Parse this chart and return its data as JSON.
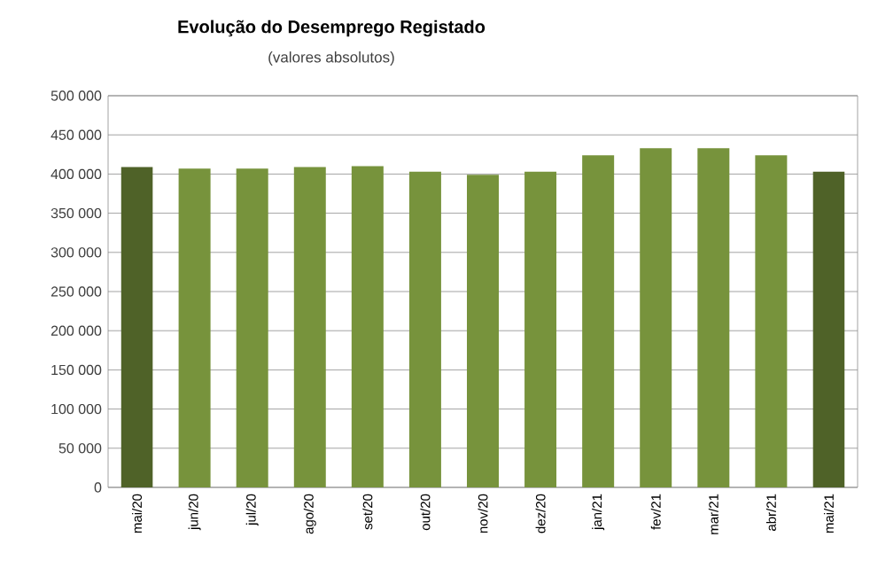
{
  "chart_data": {
    "type": "bar",
    "title": "Evolução do Desemprego Registado",
    "subtitle": "(valores absolutos)",
    "categories": [
      "mai/20",
      "jun/20",
      "jul/20",
      "ago/20",
      "set/20",
      "out/20",
      "nov/20",
      "dez/20",
      "jan/21",
      "fev/21",
      "mar/21",
      "abr/21",
      "mai/21"
    ],
    "values": [
      409000,
      407000,
      407000,
      409000,
      410000,
      403000,
      399000,
      403000,
      424000,
      433000,
      433000,
      424000,
      403000
    ],
    "colors": [
      "#4f6228",
      "#77933c",
      "#77933c",
      "#77933c",
      "#77933c",
      "#77933c",
      "#77933c",
      "#77933c",
      "#77933c",
      "#77933c",
      "#77933c",
      "#77933c",
      "#4f6228"
    ],
    "ylim": [
      0,
      500000
    ],
    "yticks": [
      {
        "value": 0,
        "label": "0"
      },
      {
        "value": 50000,
        "label": "50 000"
      },
      {
        "value": 100000,
        "label": "100 000"
      },
      {
        "value": 150000,
        "label": "150 000"
      },
      {
        "value": 200000,
        "label": "200 000"
      },
      {
        "value": 250000,
        "label": "250 000"
      },
      {
        "value": 300000,
        "label": "300 000"
      },
      {
        "value": 350000,
        "label": "350 000"
      },
      {
        "value": 400000,
        "label": "400 000"
      },
      {
        "value": 450000,
        "label": "450 000"
      },
      {
        "value": 500000,
        "label": "500 000"
      }
    ],
    "grid": "y"
  }
}
